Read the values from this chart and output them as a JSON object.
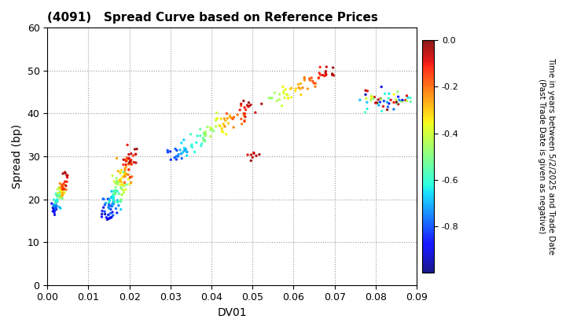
{
  "title": "(4091)   Spread Curve based on Reference Prices",
  "xlabel": "DV01",
  "ylabel": "Spread (bp)",
  "xlim": [
    0,
    0.09
  ],
  "ylim": [
    0,
    60
  ],
  "xticks": [
    0.0,
    0.01,
    0.02,
    0.03,
    0.04,
    0.05,
    0.06,
    0.07,
    0.08,
    0.09
  ],
  "yticks": [
    0,
    10,
    20,
    30,
    40,
    50,
    60
  ],
  "colorbar_label_line1": "Time in years between 5/2/2025 and Trade Date",
  "colorbar_label_line2": "(Past Trade Date is given as negative)",
  "cmap": "jet",
  "vmin": -1.0,
  "vmax": 0.0,
  "colorbar_ticks": [
    0.0,
    -0.2,
    -0.4,
    -0.6,
    -0.8
  ],
  "background_color": "#ffffff",
  "marker_size": 6,
  "marker_alpha": 0.9
}
